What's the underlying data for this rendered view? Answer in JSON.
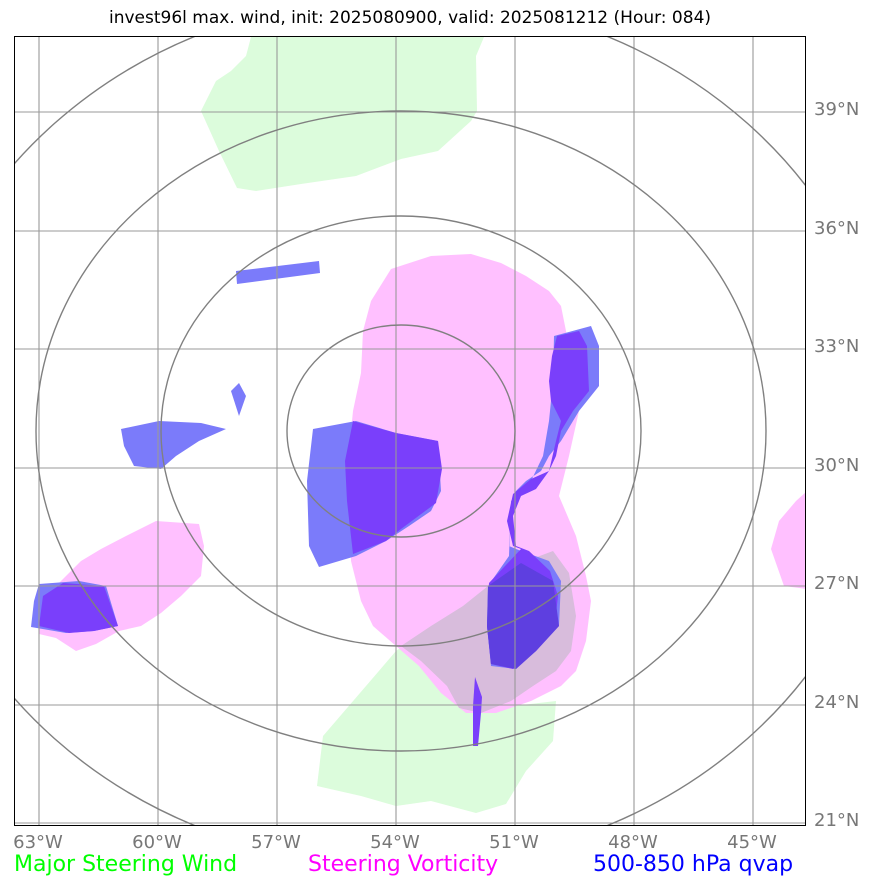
{
  "title": "invest96l max. wind, init: 2025080900, valid: 2025081212 (Hour: 084)",
  "lat_labels": [
    "39°N",
    "36°N",
    "33°N",
    "30°N",
    "27°N",
    "24°N",
    "21°N"
  ],
  "lon_labels": [
    "63°W",
    "60°W",
    "57°W",
    "54°W",
    "51°W",
    "48°W",
    "45°W"
  ],
  "legend": {
    "steering_wind": "Major Steering Wind",
    "steering_vorticity": "Steering Vorticity",
    "qvap": "500-850 hPa qvap"
  },
  "colors": {
    "steering_wind": "#00ff00",
    "steering_wind_fill": "#dcfcdc",
    "steering_vorticity": "#ff00ff",
    "steering_vorticity_fill": "#ffc0ff",
    "qvap": "#0000ff",
    "qvap_light_fill": "#7b7bfa",
    "qvap_dark_fill": "#7a3ffb",
    "overlap_fill": "#d8bcdc",
    "grid": "#999999",
    "range_rings": "#808080"
  }
}
